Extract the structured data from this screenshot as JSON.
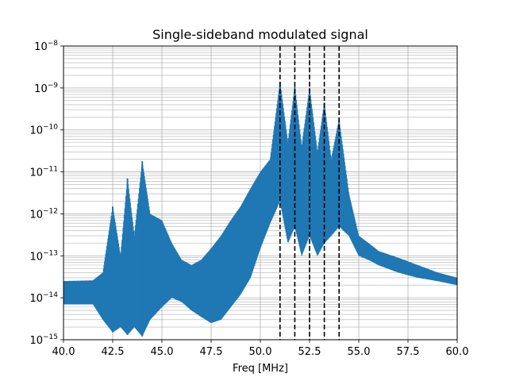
{
  "chart_data": {
    "type": "line",
    "title": "Single-sideband modulated signal",
    "xlabel": "Freq [MHz]",
    "ylabel": "",
    "xlim": [
      40.0,
      60.0
    ],
    "ylim": [
      1e-15,
      1e-08
    ],
    "yscale": "log",
    "grid": {
      "major": true,
      "minor": true
    },
    "line_color": "#1f77b4",
    "marker_color": "#000000",
    "x_ticks": [
      40.0,
      42.5,
      45.0,
      47.5,
      50.0,
      52.5,
      55.0,
      57.5,
      60.0
    ],
    "x_tick_labels": [
      "40.0",
      "42.5",
      "45.0",
      "47.5",
      "50.0",
      "52.5",
      "55.0",
      "57.5",
      "60.0"
    ],
    "y_ticks": [
      {
        "value": 1e-15,
        "base": "10",
        "exp": "−15"
      },
      {
        "value": 1e-14,
        "base": "10",
        "exp": "−14"
      },
      {
        "value": 1e-13,
        "base": "10",
        "exp": "−13"
      },
      {
        "value": 1e-12,
        "base": "10",
        "exp": "−12"
      },
      {
        "value": 1e-11,
        "base": "10",
        "exp": "−11"
      },
      {
        "value": 1e-10,
        "base": "10",
        "exp": "−10"
      },
      {
        "value": 1e-09,
        "base": "10",
        "exp": "−9"
      },
      {
        "value": 1e-08,
        "base": "10",
        "exp": "−8"
      }
    ],
    "vertical_lines": [
      51.0,
      51.75,
      52.5,
      53.25,
      54.0
    ],
    "peaks": [
      {
        "x": 42.5,
        "y": 1.5e-12
      },
      {
        "x": 43.25,
        "y": 7e-12
      },
      {
        "x": 44.0,
        "y": 1.8e-11
      },
      {
        "x": 51.0,
        "y": 1.4e-09
      },
      {
        "x": 51.75,
        "y": 1.1e-09
      },
      {
        "x": 52.5,
        "y": 1e-09
      },
      {
        "x": 53.25,
        "y": 4.5e-10
      },
      {
        "x": 54.0,
        "y": 1.8e-10
      }
    ],
    "envelope_upper": [
      [
        40.0,
        2.5e-14
      ],
      [
        41.5,
        2.6e-14
      ],
      [
        42.0,
        4e-14
      ],
      [
        42.5,
        1.5e-12
      ],
      [
        42.9,
        1e-13
      ],
      [
        43.25,
        7e-12
      ],
      [
        43.6,
        3e-13
      ],
      [
        44.0,
        1.8e-11
      ],
      [
        44.4,
        1e-12
      ],
      [
        45.0,
        7e-13
      ],
      [
        45.5,
        2e-13
      ],
      [
        46.0,
        8e-14
      ],
      [
        46.5,
        6e-14
      ],
      [
        47.0,
        8e-14
      ],
      [
        47.5,
        1.5e-13
      ],
      [
        48.0,
        3e-13
      ],
      [
        48.5,
        7e-13
      ],
      [
        49.0,
        1.5e-12
      ],
      [
        49.5,
        4e-12
      ],
      [
        50.0,
        1e-11
      ],
      [
        50.5,
        2e-11
      ],
      [
        51.0,
        1.4e-09
      ],
      [
        51.4,
        5e-11
      ],
      [
        51.75,
        1.1e-09
      ],
      [
        52.1,
        4e-11
      ],
      [
        52.5,
        1e-09
      ],
      [
        52.9,
        3e-11
      ],
      [
        53.25,
        4.5e-10
      ],
      [
        53.6,
        2e-11
      ],
      [
        54.0,
        1.8e-10
      ],
      [
        54.5,
        3e-12
      ],
      [
        55.0,
        3e-13
      ],
      [
        55.5,
        2e-13
      ],
      [
        56.0,
        1.3e-13
      ],
      [
        57.0,
        9e-14
      ],
      [
        58.0,
        6e-14
      ],
      [
        59.0,
        4e-14
      ],
      [
        60.0,
        3e-14
      ]
    ],
    "envelope_lower": [
      [
        40.0,
        7e-15
      ],
      [
        41.5,
        7e-15
      ],
      [
        42.0,
        3e-15
      ],
      [
        42.5,
        1.5e-15
      ],
      [
        42.9,
        2e-15
      ],
      [
        43.25,
        1.3e-15
      ],
      [
        43.6,
        2e-15
      ],
      [
        44.0,
        1.2e-15
      ],
      [
        44.4,
        3e-15
      ],
      [
        45.0,
        6e-15
      ],
      [
        45.5,
        1e-14
      ],
      [
        46.0,
        8e-15
      ],
      [
        46.5,
        5e-15
      ],
      [
        47.0,
        3.5e-15
      ],
      [
        47.5,
        2.5e-15
      ],
      [
        48.0,
        3e-15
      ],
      [
        48.5,
        6e-15
      ],
      [
        49.0,
        1.2e-14
      ],
      [
        49.5,
        3e-14
      ],
      [
        50.0,
        1.5e-13
      ],
      [
        50.5,
        6e-13
      ],
      [
        51.0,
        2e-12
      ],
      [
        51.4,
        2e-13
      ],
      [
        51.75,
        5e-13
      ],
      [
        52.1,
        1e-13
      ],
      [
        52.5,
        3e-13
      ],
      [
        52.9,
        1e-13
      ],
      [
        53.25,
        2e-13
      ],
      [
        53.6,
        3e-13
      ],
      [
        54.0,
        5e-13
      ],
      [
        54.5,
        3e-13
      ],
      [
        55.0,
        1e-13
      ],
      [
        55.5,
        8e-14
      ],
      [
        56.0,
        6e-14
      ],
      [
        57.0,
        4e-14
      ],
      [
        58.0,
        3e-14
      ],
      [
        59.0,
        2.5e-14
      ],
      [
        60.0,
        2e-14
      ]
    ]
  }
}
